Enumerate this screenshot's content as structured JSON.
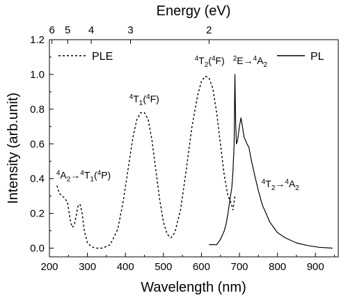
{
  "chart_data": {
    "type": "line",
    "xlabel": "Wavelength (nm)",
    "ylabel": "Intensity (arb.unit)",
    "top_xlabel": "Energy (eV)",
    "xlim": [
      200,
      960
    ],
    "ylim": [
      -0.05,
      1.2
    ],
    "x_ticks": [
      "200",
      "300",
      "400",
      "500",
      "600",
      "700",
      "800",
      "900"
    ],
    "y_ticks": [
      "0.0",
      "0.2",
      "0.4",
      "0.6",
      "0.8",
      "1.0",
      "1.2"
    ],
    "top_ticks": [
      {
        "label": "6",
        "energy_ev": 6
      },
      {
        "label": "5",
        "energy_ev": 5
      },
      {
        "label": "4",
        "energy_ev": 4
      },
      {
        "label": "3",
        "energy_ev": 3
      },
      {
        "label": "2",
        "energy_ev": 2
      }
    ],
    "legend": [
      {
        "label": "PLE",
        "style": "dashed",
        "position": "top-left"
      },
      {
        "label": "PL",
        "style": "solid",
        "position": "top-right"
      }
    ],
    "annotations": [
      {
        "parts": [
          [
            "",
            "4"
          ],
          [
            "A",
            ""
          ],
          [
            "",
            "2"
          ],
          [
            "→",
            ""
          ],
          [
            "",
            "4"
          ],
          [
            "T",
            ""
          ],
          [
            "",
            "1"
          ],
          [
            "(",
            ""
          ],
          [
            "",
            "4"
          ],
          [
            "P)",
            ""
          ]
        ],
        "x": 218,
        "y": 0.4
      },
      {
        "parts": [
          [
            "",
            "4"
          ],
          [
            "T",
            ""
          ],
          [
            "",
            "1"
          ],
          [
            "(",
            ""
          ],
          [
            "",
            "4"
          ],
          [
            "F)",
            ""
          ]
        ],
        "x": 410,
        "y": 0.84
      },
      {
        "parts": [
          [
            "",
            "4"
          ],
          [
            "T",
            ""
          ],
          [
            "",
            "2"
          ],
          [
            "(",
            ""
          ],
          [
            "",
            "4"
          ],
          [
            "F)",
            ""
          ]
        ],
        "x": 582,
        "y": 1.06
      },
      {
        "parts": [
          [
            "",
            "2"
          ],
          [
            "E→",
            ""
          ],
          [
            "",
            "4"
          ],
          [
            "A",
            ""
          ],
          [
            "",
            "2"
          ]
        ],
        "x": 683,
        "y": 1.06
      },
      {
        "parts": [
          [
            "",
            "4"
          ],
          [
            "T",
            ""
          ],
          [
            "",
            "2"
          ],
          [
            "→",
            ""
          ],
          [
            "",
            "4"
          ],
          [
            "A",
            ""
          ],
          [
            "",
            "2"
          ]
        ],
        "x": 758,
        "y": 0.35
      }
    ],
    "series": [
      {
        "name": "PLE",
        "style": "dashed",
        "x": [
          220,
          225,
          232,
          240,
          248,
          255,
          260,
          265,
          270,
          276,
          281,
          286,
          292,
          300,
          310,
          320,
          340,
          360,
          380,
          395,
          410,
          420,
          430,
          440,
          450,
          460,
          470,
          480,
          490,
          500,
          510,
          520,
          530,
          545,
          560,
          575,
          590,
          600,
          610,
          620,
          630,
          640,
          650,
          660,
          670,
          678,
          683,
          688
        ],
        "y": [
          0.36,
          0.32,
          0.3,
          0.29,
          0.26,
          0.16,
          0.12,
          0.13,
          0.18,
          0.25,
          0.25,
          0.2,
          0.1,
          0.03,
          0.01,
          0.0,
          0.0,
          0.02,
          0.11,
          0.28,
          0.5,
          0.64,
          0.74,
          0.78,
          0.78,
          0.74,
          0.62,
          0.45,
          0.28,
          0.15,
          0.08,
          0.06,
          0.09,
          0.22,
          0.45,
          0.7,
          0.88,
          0.96,
          0.99,
          0.98,
          0.92,
          0.78,
          0.6,
          0.42,
          0.3,
          0.26,
          0.22,
          0.3
        ]
      },
      {
        "name": "PL",
        "style": "solid",
        "x": [
          620,
          640,
          650,
          660,
          665,
          670,
          675,
          680,
          683,
          686,
          688,
          690,
          692,
          695,
          700,
          704,
          708,
          712,
          716,
          720,
          725,
          730,
          740,
          750,
          760,
          780,
          800,
          820,
          850,
          880,
          910,
          945
        ],
        "y": [
          0.02,
          0.02,
          0.05,
          0.1,
          0.14,
          0.2,
          0.28,
          0.35,
          0.44,
          0.6,
          1.0,
          0.72,
          0.6,
          0.62,
          0.7,
          0.75,
          0.7,
          0.64,
          0.62,
          0.6,
          0.58,
          0.52,
          0.42,
          0.33,
          0.25,
          0.15,
          0.09,
          0.06,
          0.03,
          0.015,
          0.005,
          0.0
        ]
      }
    ]
  }
}
